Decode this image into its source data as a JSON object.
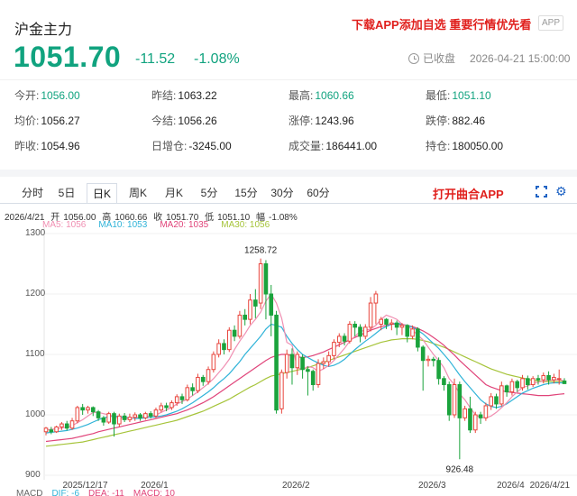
{
  "header": {
    "title": "沪金主力",
    "promo": "下载APP添加自选 重要行情优先看",
    "app_badge": "APP",
    "price": "1051.70",
    "change": "-11.52",
    "change_pct": "-1.08%",
    "status": "已收盘",
    "timestamp": "2026-04-21 15:00:00"
  },
  "stats": [
    [
      {
        "label": "今开:",
        "value": "1056.00",
        "tone": "green"
      },
      {
        "label": "昨结:",
        "value": "1063.22",
        "tone": "dark"
      },
      {
        "label": "最高:",
        "value": "1060.66",
        "tone": "green"
      },
      {
        "label": "最低:",
        "value": "1051.10",
        "tone": "green"
      }
    ],
    [
      {
        "label": "均价:",
        "value": "1056.27",
        "tone": "dark"
      },
      {
        "label": "今结:",
        "value": "1056.26",
        "tone": "dark"
      },
      {
        "label": "涨停:",
        "value": "1243.96",
        "tone": "dark"
      },
      {
        "label": "跌停:",
        "value": "882.46",
        "tone": "dark"
      }
    ],
    [
      {
        "label": "昨收:",
        "value": "1054.96",
        "tone": "dark"
      },
      {
        "label": "日增仓:",
        "value": "-3245.00",
        "tone": "dark"
      },
      {
        "label": "成交量:",
        "value": "186441.00",
        "tone": "dark"
      },
      {
        "label": "持仓:",
        "value": "180050.00",
        "tone": "dark"
      }
    ]
  ],
  "tabs": [
    {
      "label": "分时",
      "active": false
    },
    {
      "label": "5日",
      "active": false
    },
    {
      "label": "日K",
      "active": true
    },
    {
      "label": "周K",
      "active": false
    },
    {
      "label": "月K",
      "active": false
    },
    {
      "label": "5分",
      "active": false
    },
    {
      "label": "15分",
      "active": false
    },
    {
      "label": "30分",
      "active": false
    },
    {
      "label": "60分",
      "active": false
    }
  ],
  "open_app": "打开曲合APP",
  "icons": {
    "fullscreen": "fullscreen-icon",
    "settings": "gear-icon",
    "status": "clock-icon"
  },
  "colors": {
    "down": "#11a37f",
    "promo": "#e0201d",
    "up_candle": "#e8453c",
    "down_candle": "#1aa33c",
    "ma5": "#f08fb2",
    "ma10": "#2fb3d8",
    "ma20": "#e0447a",
    "ma30": "#a6c43a"
  },
  "kline_info": {
    "date": "2026/4/21",
    "open_label": "开",
    "open": "1056.00",
    "high_label": "高",
    "high": "1060.66",
    "close_label": "收",
    "close": "1051.70",
    "low_label": "低",
    "low": "1051.10",
    "amp_label": "幅",
    "amp": "-1.08%"
  },
  "ma_legend": [
    {
      "label": "MA5: 1056",
      "color": "#f08fb2"
    },
    {
      "label": "MA10: 1053",
      "color": "#2fb3d8"
    },
    {
      "label": "MA20: 1035",
      "color": "#e0447a"
    },
    {
      "label": "MA30: 1056",
      "color": "#a6c43a"
    }
  ],
  "chart_data": {
    "type": "candlestick",
    "y_ticks": [
      1300,
      1200,
      1100,
      1000,
      900
    ],
    "ylim": [
      890,
      1305
    ],
    "x_ticks": [
      "2025/12/17",
      "2026/1",
      "2026/2",
      "2026/3",
      "2026/4",
      "2026/4/21"
    ],
    "annotations": [
      {
        "text": "1258.72",
        "value": 1258.72
      },
      {
        "text": "926.48",
        "value": 926.48
      }
    ],
    "candles": [
      [
        972,
        978,
        966,
        980
      ],
      [
        975,
        972,
        968,
        980
      ],
      [
        972,
        980,
        970,
        982
      ],
      [
        980,
        985,
        975,
        988
      ],
      [
        985,
        978,
        974,
        990
      ],
      [
        978,
        990,
        975,
        995
      ],
      [
        990,
        1012,
        986,
        1015
      ],
      [
        1012,
        1008,
        1000,
        1018
      ],
      [
        1008,
        1012,
        1002,
        1015
      ],
      [
        1012,
        1005,
        998,
        1014
      ],
      [
        1005,
        995,
        990,
        1008
      ],
      [
        995,
        988,
        982,
        998
      ],
      [
        988,
        1002,
        985,
        1005
      ],
      [
        1002,
        985,
        964,
        1005
      ],
      [
        985,
        998,
        980,
        1002
      ],
      [
        998,
        992,
        988,
        1003
      ],
      [
        992,
        996,
        988,
        1002
      ],
      [
        996,
        1000,
        990,
        1004
      ],
      [
        1000,
        995,
        990,
        1003
      ],
      [
        995,
        1002,
        992,
        1005
      ],
      [
        1002,
        998,
        994,
        1006
      ],
      [
        998,
        1008,
        995,
        1012
      ],
      [
        1008,
        1015,
        1004,
        1020
      ],
      [
        1015,
        1012,
        1006,
        1020
      ],
      [
        1012,
        1020,
        1008,
        1024
      ],
      [
        1020,
        1030,
        1015,
        1034
      ],
      [
        1030,
        1025,
        1018,
        1035
      ],
      [
        1025,
        1045,
        1022,
        1050
      ],
      [
        1045,
        1040,
        1032,
        1052
      ],
      [
        1040,
        1062,
        1036,
        1068
      ],
      [
        1062,
        1055,
        1048,
        1066
      ],
      [
        1055,
        1075,
        1050,
        1080
      ],
      [
        1075,
        1100,
        1070,
        1105
      ],
      [
        1100,
        1118,
        1095,
        1125
      ],
      [
        1118,
        1108,
        1100,
        1125
      ],
      [
        1108,
        1140,
        1104,
        1145
      ],
      [
        1140,
        1130,
        1122,
        1148
      ],
      [
        1130,
        1165,
        1126,
        1172
      ],
      [
        1165,
        1158,
        1148,
        1175
      ],
      [
        1158,
        1190,
        1150,
        1200
      ],
      [
        1190,
        1180,
        1160,
        1208
      ],
      [
        1185,
        1250,
        1175,
        1258.72
      ],
      [
        1250,
        1200,
        1158,
        1256
      ],
      [
        1200,
        1165,
        1130,
        1215
      ],
      [
        1165,
        1008,
        1002,
        1172
      ],
      [
        1010,
        1070,
        1002,
        1075
      ],
      [
        1070,
        1100,
        1060,
        1108
      ],
      [
        1100,
        1078,
        1050,
        1110
      ],
      [
        1078,
        1100,
        1066,
        1105
      ],
      [
        1095,
        1075,
        1060,
        1100
      ],
      [
        1075,
        1072,
        1032,
        1080
      ],
      [
        1072,
        1050,
        1040,
        1075
      ],
      [
        1050,
        1085,
        1045,
        1092
      ],
      [
        1085,
        1088,
        1076,
        1095
      ],
      [
        1088,
        1098,
        1080,
        1105
      ],
      [
        1098,
        1120,
        1092,
        1125
      ],
      [
        1120,
        1130,
        1112,
        1135
      ],
      [
        1130,
        1122,
        1115,
        1135
      ],
      [
        1122,
        1150,
        1118,
        1155
      ],
      [
        1150,
        1145,
        1130,
        1155
      ],
      [
        1145,
        1130,
        1120,
        1150
      ],
      [
        1130,
        1145,
        1125,
        1150
      ],
      [
        1145,
        1185,
        1138,
        1195
      ],
      [
        1185,
        1200,
        1150,
        1205
      ],
      [
        1150,
        1158,
        1140,
        1162
      ],
      [
        1158,
        1150,
        1142,
        1160
      ],
      [
        1150,
        1152,
        1140,
        1158
      ],
      [
        1152,
        1145,
        1132,
        1156
      ],
      [
        1145,
        1148,
        1132,
        1152
      ],
      [
        1148,
        1130,
        1120,
        1150
      ],
      [
        1130,
        1142,
        1125,
        1148
      ],
      [
        1142,
        1112,
        1105,
        1145
      ],
      [
        1112,
        1090,
        1040,
        1115
      ],
      [
        1090,
        1092,
        1080,
        1098
      ],
      [
        1092,
        1090,
        1080,
        1096
      ],
      [
        1090,
        1060,
        1050,
        1095
      ],
      [
        1060,
        1050,
        1040,
        1064
      ],
      [
        1050,
        1000,
        990,
        1055
      ],
      [
        1000,
        1050,
        995,
        1060
      ],
      [
        1050,
        995,
        926.48,
        1055
      ],
      [
        995,
        1010,
        990,
        1015
      ],
      [
        1010,
        975,
        970,
        1030
      ],
      [
        975,
        1000,
        970,
        1005
      ],
      [
        1000,
        995,
        985,
        1005
      ],
      [
        995,
        1015,
        990,
        1020
      ],
      [
        1015,
        1030,
        1008,
        1036
      ],
      [
        1030,
        1018,
        1010,
        1035
      ],
      [
        1018,
        1048,
        1014,
        1055
      ],
      [
        1048,
        1038,
        1030,
        1050
      ],
      [
        1038,
        1055,
        1032,
        1060
      ],
      [
        1055,
        1045,
        1038,
        1058
      ],
      [
        1045,
        1060,
        1040,
        1066
      ],
      [
        1060,
        1050,
        1042,
        1065
      ],
      [
        1050,
        1060,
        1046,
        1064
      ],
      [
        1060,
        1058,
        1050,
        1066
      ],
      [
        1058,
        1065,
        1052,
        1070
      ],
      [
        1065,
        1058,
        1050,
        1072
      ],
      [
        1058,
        1062,
        1052,
        1068
      ],
      [
        1060,
        1060,
        1050,
        1075
      ],
      [
        1056,
        1051.7,
        1051.1,
        1060.66
      ]
    ],
    "ma5": [
      975,
      976,
      977,
      978,
      980,
      982,
      987,
      992,
      998,
      1004,
      1004,
      1002,
      1000,
      997,
      994,
      994,
      994,
      996,
      996,
      997,
      998,
      1000,
      1004,
      1008,
      1012,
      1018,
      1022,
      1026,
      1032,
      1038,
      1045,
      1052,
      1060,
      1070,
      1080,
      1092,
      1108,
      1122,
      1134,
      1148,
      1158,
      1170,
      1188,
      1200,
      1185,
      1160,
      1120,
      1115,
      1078,
      1075,
      1080,
      1078,
      1072,
      1076,
      1082,
      1090,
      1100,
      1110,
      1122,
      1130,
      1138,
      1140,
      1142,
      1148,
      1158,
      1165,
      1162,
      1158,
      1150,
      1148,
      1140,
      1132,
      1124,
      1112,
      1100,
      1090,
      1078,
      1060,
      1050,
      1035,
      1025,
      1012,
      1000,
      996,
      995,
      998,
      1004,
      1012,
      1020,
      1030,
      1038,
      1045,
      1048,
      1052,
      1054,
      1056,
      1057,
      1058,
      1058,
      1056
    ],
    "ma10": [
      970,
      971,
      972,
      973,
      974,
      976,
      978,
      981,
      984,
      988,
      992,
      995,
      997,
      998,
      997,
      996,
      995,
      994,
      994,
      995,
      996,
      997,
      998,
      1000,
      1003,
      1006,
      1010,
      1015,
      1020,
      1026,
      1032,
      1038,
      1045,
      1053,
      1060,
      1068,
      1078,
      1088,
      1100,
      1110,
      1120,
      1130,
      1142,
      1150,
      1148,
      1145,
      1130,
      1118,
      1108,
      1100,
      1095,
      1090,
      1086,
      1082,
      1080,
      1082,
      1086,
      1092,
      1100,
      1108,
      1115,
      1122,
      1128,
      1135,
      1142,
      1146,
      1150,
      1152,
      1150,
      1148,
      1145,
      1140,
      1134,
      1126,
      1118,
      1110,
      1100,
      1090,
      1078,
      1066,
      1055,
      1045,
      1035,
      1025,
      1018,
      1014,
      1012,
      1014,
      1018,
      1024,
      1030,
      1036,
      1040,
      1044,
      1047,
      1050,
      1052,
      1053,
      1053,
      1053
    ],
    "ma20": [
      956,
      957,
      958,
      959,
      960,
      961,
      963,
      965,
      967,
      969,
      972,
      974,
      976,
      978,
      980,
      982,
      984,
      986,
      988,
      990,
      992,
      994,
      996,
      998,
      1000,
      1002,
      1005,
      1008,
      1012,
      1016,
      1020,
      1025,
      1030,
      1036,
      1042,
      1048,
      1054,
      1060,
      1066,
      1072,
      1078,
      1084,
      1090,
      1095,
      1098,
      1100,
      1100,
      1098,
      1096,
      1095,
      1096,
      1098,
      1101,
      1104,
      1108,
      1112,
      1116,
      1120,
      1124,
      1128,
      1132,
      1136,
      1140,
      1143,
      1146,
      1148,
      1150,
      1150,
      1149,
      1148,
      1146,
      1143,
      1139,
      1134,
      1128,
      1122,
      1115,
      1107,
      1099,
      1090,
      1082,
      1074,
      1066,
      1058,
      1050,
      1046,
      1043,
      1040,
      1038,
      1037,
      1036,
      1035,
      1034,
      1033,
      1032,
      1032,
      1032,
      1033,
      1034,
      1035
    ],
    "ma30": [
      948,
      949,
      950,
      951,
      952,
      953,
      954,
      955,
      957,
      959,
      961,
      963,
      965,
      967,
      969,
      971,
      973,
      975,
      977,
      979,
      981,
      983,
      985,
      987,
      989,
      991,
      994,
      997,
      1000,
      1003,
      1006,
      1010,
      1014,
      1018,
      1022,
      1026,
      1031,
      1036,
      1041,
      1046,
      1050,
      1055,
      1060,
      1064,
      1066,
      1068,
      1070,
      1072,
      1074,
      1076,
      1078,
      1081,
      1084,
      1087,
      1090,
      1093,
      1096,
      1099,
      1102,
      1105,
      1108,
      1111,
      1114,
      1117,
      1120,
      1122,
      1124,
      1125,
      1126,
      1126,
      1126,
      1125,
      1123,
      1121,
      1118,
      1115,
      1112,
      1108,
      1104,
      1100,
      1096,
      1092,
      1088,
      1084,
      1080,
      1076,
      1073,
      1070,
      1067,
      1065,
      1063,
      1061,
      1059,
      1057,
      1056,
      1055,
      1055,
      1055,
      1055,
      1056
    ]
  },
  "macd": [
    {
      "label": "MACD",
      "color": "#666"
    },
    {
      "label": "DIF: -6",
      "color": "#2fb3d8"
    },
    {
      "label": "DEA: -11",
      "color": "#e0447a"
    },
    {
      "label": "MACD: 10",
      "color": "#e0447a"
    }
  ]
}
